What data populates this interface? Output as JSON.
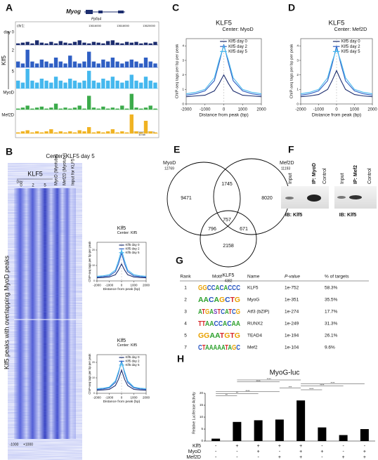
{
  "panel_labels": [
    "A",
    "B",
    "C",
    "D",
    "E",
    "F",
    "G",
    "H"
  ],
  "genome_browser": {
    "gene1": "Myog",
    "gene2": "Ppfia4",
    "chrom": "chr1:",
    "coords": [
      "13616000",
      "13618000",
      "13620000"
    ],
    "group_label": "Klf5",
    "scale": "10 kb",
    "ylim": [
      0,
      1
    ],
    "tracks": [
      {
        "label": "day 0",
        "color": "#1c2d6e",
        "values": [
          0.1,
          0.15,
          0.2,
          0.1,
          0.3,
          0.15,
          0.1,
          0.2,
          0.1,
          0.25,
          0.15,
          0.1,
          0.2,
          0.3,
          0.15,
          0.1,
          0.2,
          0.15,
          0.1,
          0.25,
          0.3,
          0.15,
          0.1,
          0.2,
          0.15,
          0.2,
          0.1,
          0.15,
          0.1,
          0.2
        ]
      },
      {
        "label": "2",
        "color": "#2f5fc4",
        "values": [
          0.3,
          0.2,
          0.9,
          0.3,
          0.2,
          0.4,
          0.3,
          0.2,
          0.5,
          0.3,
          0.2,
          0.6,
          0.3,
          0.2,
          0.3,
          0.8,
          0.3,
          0.2,
          0.4,
          0.3,
          0.5,
          0.3,
          0.2,
          0.3,
          0.4,
          0.3,
          0.2,
          0.5,
          0.3,
          0.2
        ]
      },
      {
        "label": "5",
        "color": "#45b8ee",
        "values": [
          0.4,
          0.3,
          1.0,
          0.4,
          0.3,
          0.5,
          0.4,
          0.3,
          0.6,
          0.4,
          0.3,
          0.5,
          0.4,
          0.3,
          0.4,
          0.9,
          0.4,
          0.3,
          0.5,
          0.4,
          0.6,
          0.4,
          0.3,
          0.4,
          0.7,
          0.4,
          0.3,
          0.6,
          0.4,
          0.3
        ]
      },
      {
        "label": "MyoD",
        "color": "#3cab4b",
        "values": [
          0.05,
          0.1,
          0.2,
          0.05,
          0.1,
          0.15,
          0.05,
          0.1,
          0.3,
          0.05,
          0.1,
          0.05,
          0.1,
          0.2,
          0.05,
          0.7,
          0.1,
          0.05,
          0.15,
          0.05,
          0.1,
          0.05,
          0.2,
          0.05,
          0.8,
          0.1,
          0.05,
          0.1,
          0.2,
          0.05
        ]
      },
      {
        "label": "Mef2D",
        "color": "#f0b323",
        "values": [
          0.05,
          0.1,
          0.15,
          0.05,
          0.1,
          0.05,
          0.1,
          0.2,
          0.05,
          0.1,
          0.05,
          0.1,
          0.05,
          0.15,
          0.1,
          0.3,
          0.05,
          0.1,
          0.05,
          0.1,
          0.2,
          0.05,
          0.1,
          0.05,
          0.9,
          0.1,
          0.05,
          0.6,
          0.1,
          0.05
        ]
      }
    ]
  },
  "heatmap": {
    "title": "Center: KLF5 day 5",
    "group_label": "KLF5",
    "day_label": "Day",
    "days": [
      "0",
      "2",
      "5"
    ],
    "columns": [
      "MyoD (Myotube)",
      "Mef2D (Myotube)",
      "Input for KLF5"
    ],
    "row_label": "Klf5 peaks with overlapping MyoD peaks",
    "x_start": "-1000",
    "x_end": "+1000"
  },
  "chart_data": [
    {
      "type": "line",
      "title": "KLF5",
      "subtitle": "Center: MyoD",
      "x_label": "Distance from peak (bp)",
      "y_label": "ChIP-seq tags per bp per peak",
      "x": [
        -2000,
        -1500,
        -1000,
        -500,
        -250,
        0,
        250,
        500,
        1000,
        1500,
        2000
      ],
      "xlim": [
        -2000,
        2000
      ],
      "xticks": [
        -2000,
        -1000,
        0,
        1000,
        2000
      ],
      "ylim": [
        0,
        4.5
      ],
      "yticks": [
        0,
        1,
        2,
        3,
        4
      ],
      "series": [
        {
          "name": "Klf5 day 0",
          "color": "#1c2d6e",
          "values": [
            0.5,
            0.55,
            0.6,
            0.9,
            1.4,
            2.0,
            1.4,
            0.9,
            0.6,
            0.55,
            0.5
          ]
        },
        {
          "name": "Klf5 day 2",
          "color": "#2f5fc4",
          "values": [
            0.6,
            0.7,
            0.9,
            1.6,
            2.8,
            4.1,
            2.8,
            1.6,
            0.9,
            0.7,
            0.6
          ]
        },
        {
          "name": "Klf5 day 5",
          "color": "#45b8ee",
          "values": [
            0.7,
            0.8,
            1.0,
            1.8,
            3.0,
            4.0,
            3.0,
            1.8,
            1.0,
            0.8,
            0.7
          ]
        }
      ]
    },
    {
      "type": "line",
      "title": "KLF5",
      "subtitle": "Center: Mef2D",
      "x_label": "Distance from peak (bp)",
      "y_label": "ChIP-seq tags per bp per peak",
      "x": [
        -2000,
        -1500,
        -1000,
        -500,
        -250,
        0,
        250,
        500,
        1000,
        1500,
        2000
      ],
      "xlim": [
        -2000,
        2000
      ],
      "xticks": [
        -2000,
        -1000,
        0,
        1000,
        2000
      ],
      "ylim": [
        0,
        4.5
      ],
      "yticks": [
        0,
        1,
        2,
        3,
        4
      ],
      "series": [
        {
          "name": "Klf5 day 0",
          "color": "#1c2d6e",
          "values": [
            0.5,
            0.55,
            0.65,
            1.0,
            1.6,
            2.3,
            1.6,
            1.0,
            0.65,
            0.55,
            0.5
          ]
        },
        {
          "name": "Klf5 day 2",
          "color": "#2f5fc4",
          "values": [
            0.6,
            0.7,
            0.9,
            1.6,
            2.7,
            4.0,
            2.7,
            1.6,
            0.9,
            0.7,
            0.6
          ]
        },
        {
          "name": "Klf5 day 5",
          "color": "#45b8ee",
          "values": [
            0.7,
            0.8,
            1.0,
            1.8,
            2.9,
            3.8,
            2.9,
            1.8,
            1.0,
            0.8,
            0.7
          ]
        }
      ]
    },
    {
      "type": "line",
      "title": "Klf5",
      "subtitle": "Center: Klf5",
      "x_label": "Distance from peak (bp)",
      "y_label": "ChIP-seq tags per bp per peak",
      "x": [
        -2000,
        -1500,
        -1000,
        -500,
        -250,
        0,
        250,
        500,
        1000,
        1500,
        2000
      ],
      "xlim": [
        -2000,
        2000
      ],
      "xticks": [
        -2000,
        -1000,
        0,
        1000,
        2000
      ],
      "ylim": [
        0,
        25
      ],
      "yticks": [
        0,
        10,
        20
      ],
      "series": [
        {
          "name": "Klf5 day 0",
          "color": "#1c2d6e",
          "values": [
            2,
            2.2,
            2.5,
            4,
            7,
            11,
            7,
            4,
            2.5,
            2.2,
            2
          ]
        },
        {
          "name": "Klf5 day 2",
          "color": "#2f5fc4",
          "values": [
            2.5,
            2.8,
            3.2,
            6,
            11,
            18,
            11,
            6,
            3.2,
            2.8,
            2.5
          ]
        },
        {
          "name": "Klf5 day 5",
          "color": "#45b8ee",
          "values": [
            3,
            3.3,
            4,
            7,
            13,
            20,
            13,
            7,
            4,
            3.3,
            3
          ]
        }
      ]
    },
    {
      "type": "line",
      "title": "Klf5",
      "subtitle": "Center: Klf5",
      "x_label": "Distance from peak (bp)",
      "y_label": "ChIP-seq tags per bp per peak",
      "x": [
        -2000,
        -1500,
        -1000,
        -500,
        -250,
        0,
        250,
        500,
        1000,
        1500,
        2000
      ],
      "xlim": [
        -2000,
        2000
      ],
      "xticks": [
        -2000,
        -1000,
        0,
        1000,
        2000
      ],
      "ylim": [
        0,
        25
      ],
      "yticks": [
        0,
        10,
        20
      ],
      "series": [
        {
          "name": "Klf5 day 0",
          "color": "#1c2d6e",
          "values": [
            2,
            2.2,
            2.5,
            5,
            9,
            15,
            9,
            5,
            2.5,
            2.2,
            2
          ]
        },
        {
          "name": "Klf5 day 2",
          "color": "#2f5fc4",
          "values": [
            2.5,
            2.8,
            3.5,
            7,
            13,
            21,
            13,
            7,
            3.5,
            2.8,
            2.5
          ]
        },
        {
          "name": "Klf5 day 5",
          "color": "#45b8ee",
          "values": [
            3,
            3.3,
            4,
            8,
            14,
            20,
            14,
            8,
            4,
            3.3,
            3
          ]
        }
      ]
    },
    {
      "type": "bar",
      "title": "MyoG-luc",
      "y_label": "Relative Luciferase Activity",
      "color": "#000000",
      "values": [
        1,
        8,
        8.7,
        9,
        17,
        5.7,
        2.5,
        5
      ],
      "ylim": [
        0,
        20
      ],
      "yticks": [
        0,
        5,
        10,
        15,
        20
      ],
      "factors": [
        {
          "name": "Klf5",
          "signs": [
            "-",
            "+",
            "+",
            "+",
            "+",
            "-",
            "-",
            "-"
          ]
        },
        {
          "name": "MyoD",
          "signs": [
            "-",
            "-",
            "+",
            "-",
            "+",
            "+",
            "-",
            "+"
          ]
        },
        {
          "name": "Mef2D",
          "signs": [
            "-",
            "-",
            "-",
            "+",
            "+",
            "-",
            "+",
            "+"
          ]
        }
      ],
      "significance": [
        "****",
        "****",
        "****",
        "****",
        "***",
        "****",
        "****",
        "**",
        "**"
      ]
    }
  ],
  "venn": {
    "sets": [
      {
        "name": "MyoD",
        "count": "12769"
      },
      {
        "name": "Mef2D",
        "count": "11193"
      },
      {
        "name": "KLF5",
        "count": "4382"
      }
    ],
    "regions": [
      "9471",
      "1745",
      "8020",
      "757",
      "796",
      "671",
      "2158"
    ]
  },
  "western": {
    "left_lanes": [
      "Input",
      "IP: MyoD",
      "Control"
    ],
    "left_ib": "IB: Klf5",
    "right_lanes": [
      "Input",
      "IP: Mef2",
      "Control"
    ],
    "right_ib": "IB: Klf5"
  },
  "motifs": {
    "headers": [
      "Rank",
      "Motif",
      "Name",
      "P-value",
      "% of targets"
    ],
    "rows": [
      [
        "1",
        "GGCCACACCC",
        "KLF5",
        "1e-752",
        "58.3%"
      ],
      [
        "2",
        "AACAGCTG",
        "MyoG",
        "1e-351",
        "35.5%"
      ],
      [
        "3",
        "ATGASTCATCG",
        "Atf3 (bZIP)",
        "1e-274",
        "17.7%"
      ],
      [
        "4",
        "TTAACCACAA",
        "RUNX2",
        "1e-249",
        "31.3%"
      ],
      [
        "5",
        "GGAATGTG",
        "TEAD4",
        "1e-194",
        "26.1%"
      ],
      [
        "7",
        "CTAAAAATAGC",
        "Mef2",
        "1e-104",
        "9.6%"
      ]
    ]
  }
}
